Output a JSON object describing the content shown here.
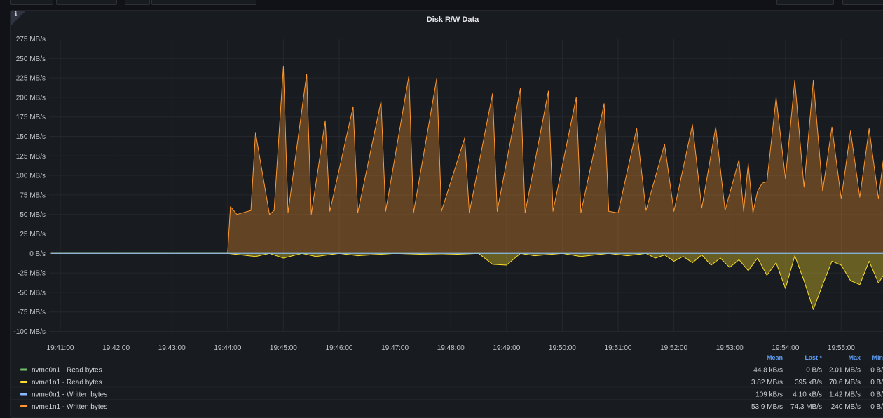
{
  "panel": {
    "title": "Disk R/W Data",
    "info_icon": "info-icon"
  },
  "chart_data": {
    "type": "area",
    "title": "Disk R/W Data",
    "ylim": [
      -100,
      275
    ],
    "y_unit": "MB/s",
    "y_ticks": [
      275,
      250,
      225,
      200,
      175,
      150,
      125,
      100,
      75,
      50,
      25,
      0,
      -25,
      -50,
      -75,
      -100
    ],
    "y_tick_labels": [
      "275 MB/s",
      "250 MB/s",
      "225 MB/s",
      "200 MB/s",
      "175 MB/s",
      "150 MB/s",
      "125 MB/s",
      "100 MB/s",
      "75 MB/s",
      "50 MB/s",
      "25 MB/s",
      "0 B/s",
      "-25 MB/s",
      "-50 MB/s",
      "-75 MB/s",
      "-100 MB/s"
    ],
    "x_tick_labels": [
      "19:41:00",
      "19:42:00",
      "19:43:00",
      "19:44:00",
      "19:45:00",
      "19:46:00",
      "19:47:00",
      "19:48:00",
      "19:49:00",
      "19:50:00",
      "19:51:00",
      "19:52:00",
      "19:53:00",
      "19:54:00",
      "19:55:00"
    ],
    "grid": true,
    "legend_placement": "bottom",
    "legend_columns": [
      "Mean",
      "Last *",
      "Max",
      "Min"
    ],
    "series": [
      {
        "name": "nvme0n1 - Read bytes",
        "color": "#73bf69",
        "stats": [
          "44.8 kB/s",
          "0 B/s",
          "2.01 MB/s",
          "0 B/"
        ],
        "x": [
          "19:40:50",
          "19:56:00"
        ],
        "values": [
          0,
          0
        ]
      },
      {
        "name": "nvme1n1 - Read bytes",
        "color": "#fade2a",
        "stats": [
          "3.82 MB/s",
          "395 kB/s",
          "70.6 MB/s",
          "0 B/"
        ],
        "x": [
          "19:40:50",
          "19:44:00",
          "19:44:30",
          "19:44:45",
          "19:45:00",
          "19:45:20",
          "19:45:35",
          "19:46:00",
          "19:46:20",
          "19:47:00",
          "19:47:50",
          "19:48:30",
          "19:48:45",
          "19:49:00",
          "19:49:15",
          "19:49:30",
          "19:50:00",
          "19:50:20",
          "19:50:50",
          "19:51:10",
          "19:51:30",
          "19:51:40",
          "19:51:50",
          "19:52:00",
          "19:52:10",
          "19:52:20",
          "19:52:30",
          "19:52:40",
          "19:52:50",
          "19:53:00",
          "19:53:10",
          "19:53:20",
          "19:53:30",
          "19:53:40",
          "19:53:50",
          "19:54:00",
          "19:54:10",
          "19:54:20",
          "19:54:30",
          "19:54:40",
          "19:54:50",
          "19:55:00",
          "19:55:10",
          "19:55:20",
          "19:55:30",
          "19:55:40",
          "19:56:00"
        ],
        "values": [
          0,
          0,
          -4,
          0,
          -6,
          0,
          -4,
          0,
          -3,
          0,
          -2,
          0,
          -14,
          -15,
          0,
          -3,
          0,
          -4,
          0,
          -3,
          0,
          -6,
          -2,
          -10,
          -4,
          -12,
          -2,
          -15,
          -6,
          -18,
          -8,
          -22,
          -6,
          -28,
          -12,
          -45,
          -3,
          -35,
          -72,
          -40,
          -10,
          -15,
          -35,
          -40,
          -10,
          -38,
          0
        ]
      },
      {
        "name": "nvme0n1 - Written bytes",
        "color": "#8ab8ff",
        "stats": [
          "109 kB/s",
          "4.10 kB/s",
          "1.42 MB/s",
          "0 B/"
        ],
        "x": [
          "19:40:50",
          "19:56:00"
        ],
        "values": [
          0,
          0
        ]
      },
      {
        "name": "nvme1n1 - Written bytes",
        "color": "#ff9830",
        "stats": [
          "53.9 MB/s",
          "74.3 MB/s",
          "240 MB/s",
          "0 B/"
        ],
        "x": [
          "19:40:50",
          "19:44:00",
          "19:44:03",
          "19:44:10",
          "19:44:25",
          "19:44:30",
          "19:44:45",
          "19:44:50",
          "19:45:00",
          "19:45:05",
          "19:45:25",
          "19:45:30",
          "19:45:45",
          "19:45:50",
          "19:46:15",
          "19:46:20",
          "19:46:45",
          "19:46:50",
          "19:47:15",
          "19:47:20",
          "19:47:45",
          "19:47:50",
          "19:48:15",
          "19:48:20",
          "19:48:45",
          "19:48:50",
          "19:49:15",
          "19:49:20",
          "19:49:45",
          "19:49:50",
          "19:50:15",
          "19:50:20",
          "19:50:45",
          "19:50:50",
          "19:51:00",
          "19:51:20",
          "19:51:30",
          "19:51:50",
          "19:52:00",
          "19:52:20",
          "19:52:30",
          "19:52:45",
          "19:52:55",
          "19:53:10",
          "19:53:15",
          "19:53:20",
          "19:53:25",
          "19:53:30",
          "19:53:35",
          "19:53:40",
          "19:53:50",
          "19:54:00",
          "19:54:10",
          "19:54:20",
          "19:54:30",
          "19:54:40",
          "19:54:50",
          "19:55:00",
          "19:55:10",
          "19:55:20",
          "19:55:30",
          "19:55:40",
          "19:55:50",
          "19:56:00"
        ],
        "values": [
          0,
          0,
          60,
          50,
          55,
          155,
          50,
          55,
          240,
          52,
          230,
          50,
          170,
          54,
          188,
          52,
          195,
          54,
          228,
          52,
          225,
          54,
          148,
          52,
          205,
          54,
          212,
          52,
          208,
          54,
          200,
          52,
          192,
          54,
          52,
          160,
          55,
          140,
          54,
          165,
          58,
          162,
          55,
          120,
          54,
          115,
          52,
          80,
          90,
          92,
          200,
          96,
          222,
          85,
          222,
          80,
          162,
          70,
          157,
          72,
          160,
          70,
          165,
          60
        ]
      }
    ]
  }
}
